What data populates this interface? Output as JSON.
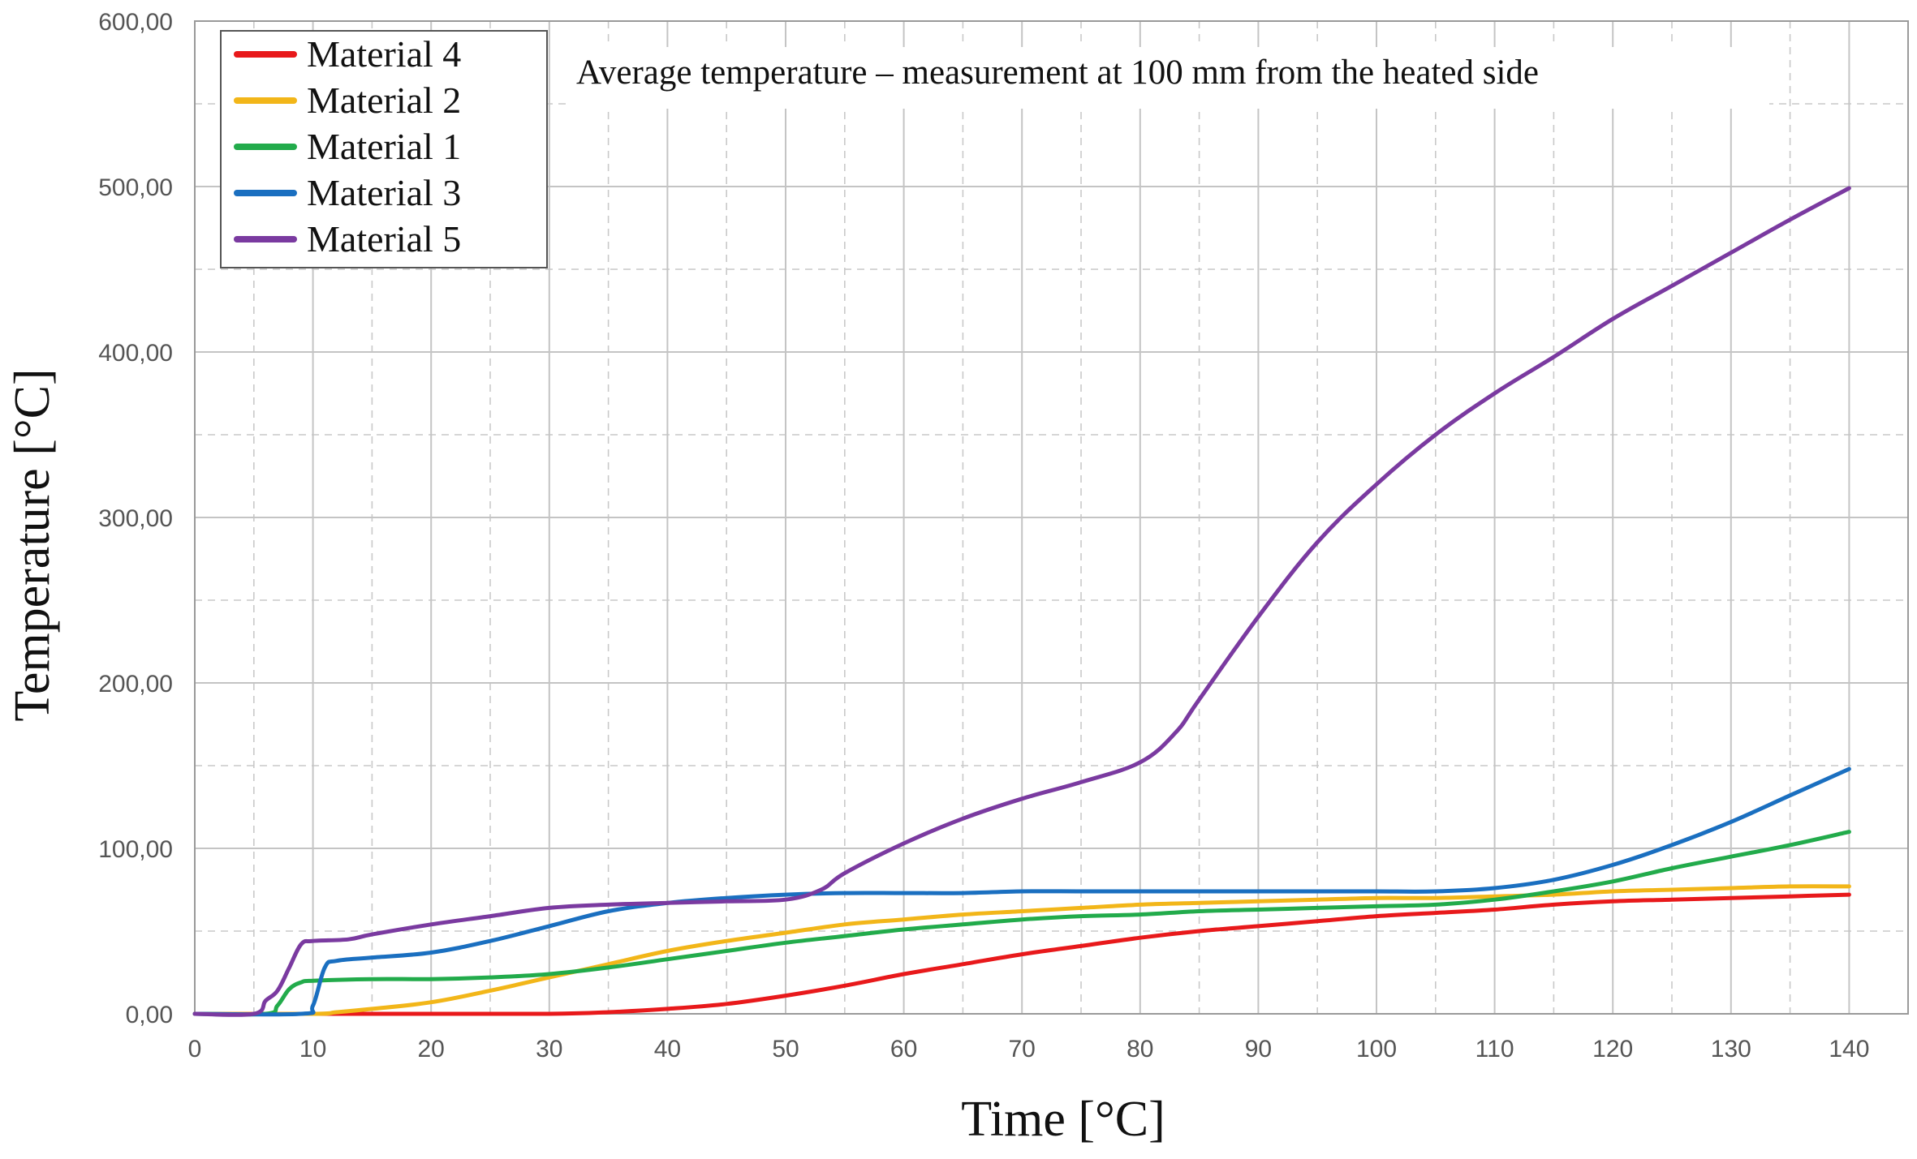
{
  "chart_data": {
    "type": "line",
    "title": "Average temperature – measurement at 100 mm from the heated side",
    "xlabel": "Time [°C]",
    "ylabel": "Temperature [°C]",
    "xlim": [
      0,
      142
    ],
    "ylim": [
      0,
      600
    ],
    "x_ticks": [
      "0",
      "10",
      "20",
      "30",
      "40",
      "50",
      "60",
      "70",
      "80",
      "90",
      "100",
      "110",
      "120",
      "130",
      "140"
    ],
    "y_ticks": [
      "0,00",
      "100,00",
      "200,00",
      "300,00",
      "400,00",
      "500,00",
      "600,00"
    ],
    "grid": true,
    "legend_position": "top-left",
    "series": [
      {
        "name": "Material 4",
        "color": "#e8191b",
        "points": [
          [
            0,
            0
          ],
          [
            10,
            0
          ],
          [
            20,
            0
          ],
          [
            30,
            0
          ],
          [
            35,
            1
          ],
          [
            40,
            3
          ],
          [
            45,
            6
          ],
          [
            50,
            11
          ],
          [
            55,
            17
          ],
          [
            60,
            24
          ],
          [
            65,
            30
          ],
          [
            70,
            36
          ],
          [
            75,
            41
          ],
          [
            80,
            46
          ],
          [
            85,
            50
          ],
          [
            90,
            53
          ],
          [
            95,
            56
          ],
          [
            100,
            59
          ],
          [
            105,
            61
          ],
          [
            110,
            63
          ],
          [
            115,
            66
          ],
          [
            120,
            68
          ],
          [
            125,
            69
          ],
          [
            130,
            70
          ],
          [
            135,
            71
          ],
          [
            140,
            72
          ]
        ]
      },
      {
        "name": "Material 2",
        "color": "#f2b619",
        "points": [
          [
            0,
            0
          ],
          [
            10,
            0
          ],
          [
            12,
            1
          ],
          [
            15,
            3
          ],
          [
            20,
            7
          ],
          [
            25,
            14
          ],
          [
            30,
            22
          ],
          [
            35,
            30
          ],
          [
            40,
            38
          ],
          [
            45,
            44
          ],
          [
            50,
            49
          ],
          [
            55,
            54
          ],
          [
            60,
            57
          ],
          [
            65,
            60
          ],
          [
            70,
            62
          ],
          [
            75,
            64
          ],
          [
            80,
            66
          ],
          [
            85,
            67
          ],
          [
            90,
            68
          ],
          [
            95,
            69
          ],
          [
            100,
            70
          ],
          [
            105,
            70
          ],
          [
            110,
            71
          ],
          [
            115,
            72
          ],
          [
            120,
            74
          ],
          [
            125,
            75
          ],
          [
            130,
            76
          ],
          [
            135,
            77
          ],
          [
            140,
            77
          ]
        ]
      },
      {
        "name": "Material 1",
        "color": "#22ab4b",
        "points": [
          [
            0,
            0
          ],
          [
            6,
            0
          ],
          [
            7,
            5
          ],
          [
            8,
            15
          ],
          [
            9,
            19
          ],
          [
            10,
            20
          ],
          [
            15,
            21
          ],
          [
            20,
            21
          ],
          [
            25,
            22
          ],
          [
            30,
            24
          ],
          [
            35,
            28
          ],
          [
            40,
            33
          ],
          [
            45,
            38
          ],
          [
            50,
            43
          ],
          [
            55,
            47
          ],
          [
            60,
            51
          ],
          [
            65,
            54
          ],
          [
            70,
            57
          ],
          [
            75,
            59
          ],
          [
            80,
            60
          ],
          [
            85,
            62
          ],
          [
            90,
            63
          ],
          [
            95,
            64
          ],
          [
            100,
            65
          ],
          [
            105,
            66
          ],
          [
            110,
            69
          ],
          [
            115,
            74
          ],
          [
            120,
            80
          ],
          [
            125,
            88
          ],
          [
            130,
            95
          ],
          [
            135,
            102
          ],
          [
            140,
            110
          ]
        ]
      },
      {
        "name": "Material 3",
        "color": "#1a6fc0",
        "points": [
          [
            0,
            0
          ],
          [
            9,
            0
          ],
          [
            10,
            5
          ],
          [
            11,
            28
          ],
          [
            12,
            32
          ],
          [
            15,
            34
          ],
          [
            20,
            37
          ],
          [
            25,
            44
          ],
          [
            30,
            53
          ],
          [
            35,
            62
          ],
          [
            40,
            67
          ],
          [
            45,
            70
          ],
          [
            50,
            72
          ],
          [
            55,
            73
          ],
          [
            60,
            73
          ],
          [
            65,
            73
          ],
          [
            70,
            74
          ],
          [
            75,
            74
          ],
          [
            80,
            74
          ],
          [
            85,
            74
          ],
          [
            90,
            74
          ],
          [
            95,
            74
          ],
          [
            100,
            74
          ],
          [
            105,
            74
          ],
          [
            110,
            76
          ],
          [
            115,
            81
          ],
          [
            120,
            90
          ],
          [
            125,
            102
          ],
          [
            130,
            116
          ],
          [
            135,
            132
          ],
          [
            140,
            148
          ]
        ]
      },
      {
        "name": "Material 5",
        "color": "#7a3aa0",
        "points": [
          [
            0,
            0
          ],
          [
            5,
            0
          ],
          [
            6,
            8
          ],
          [
            7,
            14
          ],
          [
            8,
            28
          ],
          [
            9,
            42
          ],
          [
            10,
            44
          ],
          [
            13,
            45
          ],
          [
            15,
            48
          ],
          [
            20,
            54
          ],
          [
            25,
            59
          ],
          [
            30,
            64
          ],
          [
            35,
            66
          ],
          [
            40,
            67
          ],
          [
            45,
            68
          ],
          [
            50,
            69
          ],
          [
            53,
            75
          ],
          [
            55,
            85
          ],
          [
            60,
            103
          ],
          [
            65,
            118
          ],
          [
            70,
            130
          ],
          [
            75,
            140
          ],
          [
            80,
            152
          ],
          [
            83,
            170
          ],
          [
            85,
            190
          ],
          [
            90,
            240
          ],
          [
            95,
            285
          ],
          [
            100,
            320
          ],
          [
            105,
            350
          ],
          [
            110,
            375
          ],
          [
            115,
            397
          ],
          [
            120,
            420
          ],
          [
            125,
            440
          ],
          [
            130,
            460
          ],
          [
            135,
            480
          ],
          [
            140,
            499
          ]
        ]
      }
    ]
  }
}
